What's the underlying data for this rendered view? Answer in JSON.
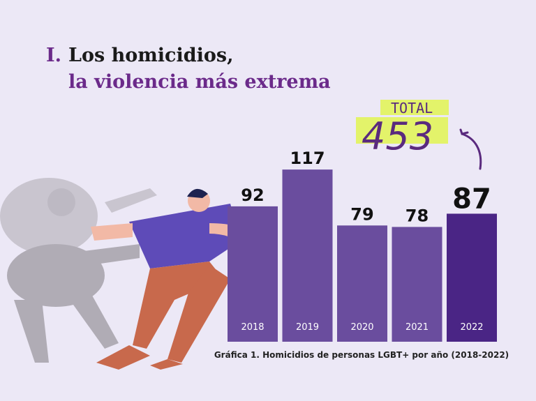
{
  "chart_data": {
    "type": "bar",
    "title_number": "I.",
    "title": "Los homicidios,",
    "subtitle": "la violencia más extrema",
    "total_label": "TOTAL",
    "total_value": 453,
    "caption": "Gráfica 1. Homicidios de personas LGBT+ por año (2018-2022)",
    "categories": [
      "2018",
      "2019",
      "2020",
      "2021",
      "2022"
    ],
    "values": [
      92,
      117,
      79,
      78,
      87
    ],
    "colors": [
      "#6a4d9e",
      "#6a4d9e",
      "#6a4d9e",
      "#6a4d9e",
      "#4a2585"
    ]
  }
}
